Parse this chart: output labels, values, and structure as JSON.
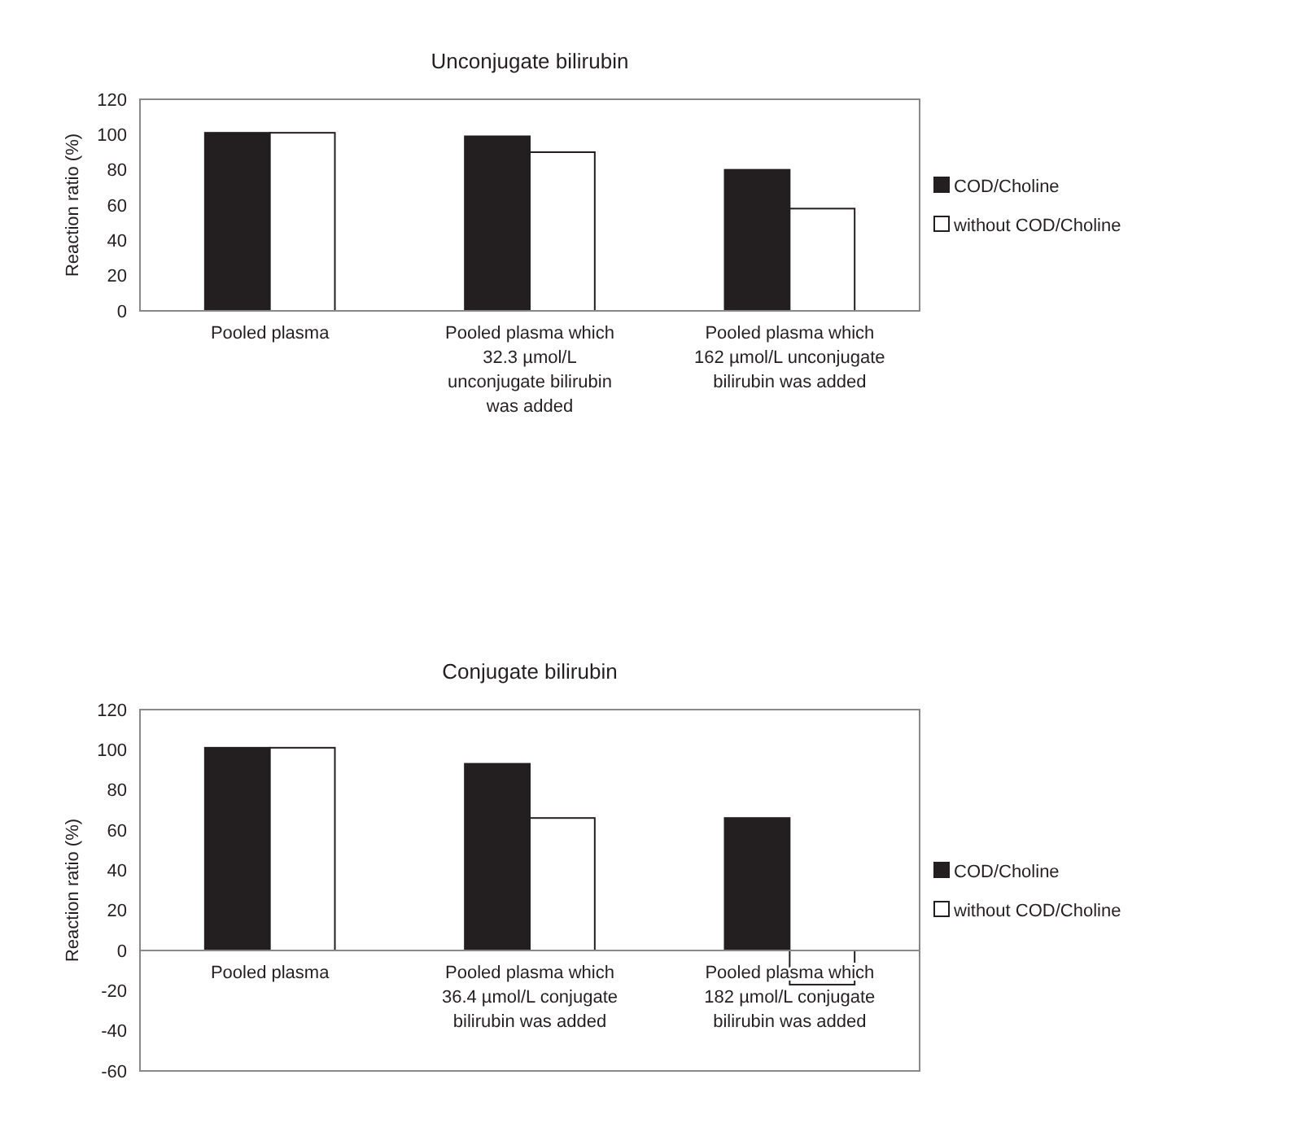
{
  "chart_data": [
    {
      "type": "bar",
      "title": "Unconjugate bilirubin",
      "ylabel": "Reaction ratio (%)",
      "categories": [
        "Pooled plasma",
        "Pooled plasma which 32.3 µmol/L unconjugate bilirubin was added",
        "Pooled plasma which 162 µmol/L unconjugate bilirubin was added"
      ],
      "series": [
        {
          "name": "COD/Choline",
          "color": "#231f20",
          "values": [
            101,
            99,
            80
          ]
        },
        {
          "name": "without COD/Choline",
          "color": "#ffffff",
          "values": [
            101,
            90,
            58
          ]
        }
      ],
      "ylim": [
        0,
        120
      ],
      "yticks": [
        0,
        20,
        40,
        60,
        80,
        100,
        120
      ],
      "legend": "right",
      "grid": false
    },
    {
      "type": "bar",
      "title": "Conjugate bilirubin",
      "ylabel": "Reaction ratio (%)",
      "categories": [
        "Pooled plasma",
        "Pooled plasma which 36.4 µmol/L conjugate bilirubin was added",
        "Pooled plasma which 182 µmol/L conjugate bilirubin was added"
      ],
      "series": [
        {
          "name": "COD/Choline",
          "color": "#231f20",
          "values": [
            101,
            93,
            66
          ]
        },
        {
          "name": "without COD/Choline",
          "color": "#ffffff",
          "values": [
            101,
            66,
            -17
          ]
        }
      ],
      "ylim": [
        -60,
        120
      ],
      "yticks": [
        -60,
        -40,
        -20,
        0,
        20,
        40,
        60,
        80,
        100,
        120
      ],
      "legend": "right",
      "grid": false
    }
  ]
}
